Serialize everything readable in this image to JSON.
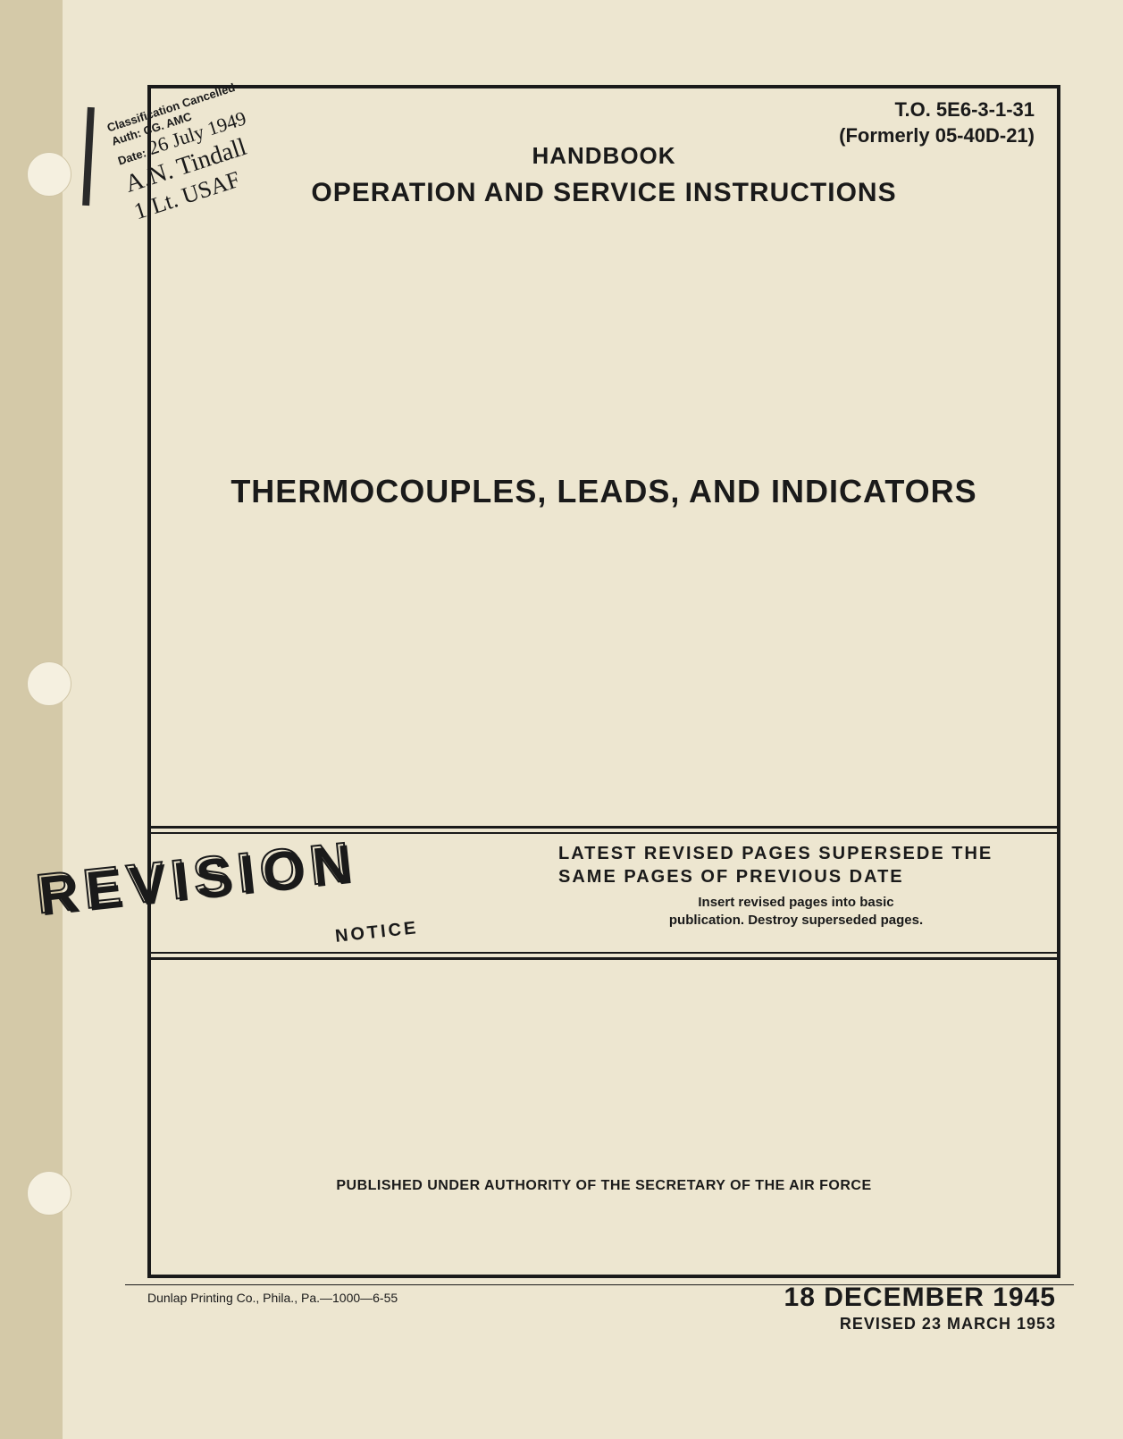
{
  "header": {
    "to_number": "T.O. 5E6-3-1-31",
    "formerly": "(Formerly 05-40D-21)",
    "handbook_label": "HANDBOOK",
    "subtitle": "OPERATION AND SERVICE INSTRUCTIONS"
  },
  "title": "THERMOCOUPLES, LEADS, AND INDICATORS",
  "revision": {
    "word": "REVISION",
    "notice_label": "NOTICE",
    "main_text": "LATEST REVISED PAGES SUPERSEDE THE SAME PAGES OF PREVIOUS DATE",
    "sub_text_1": "Insert revised pages into basic",
    "sub_text_2": "publication. Destroy superseded pages."
  },
  "authority": "PUBLISHED UNDER AUTHORITY OF THE SECRETARY OF THE AIR FORCE",
  "footer": {
    "printer": "Dunlap Printing Co., Phila., Pa.—1000—6-55",
    "pub_date": "18 DECEMBER 1945",
    "rev_date": "REVISED 23 MARCH 1953"
  },
  "stamp": {
    "line1": "Classification Cancelled",
    "line2": "Auth: CG. AMC",
    "line3_label": "Date:",
    "line3_value": "26 July 1949",
    "signature": "A.N. Tindall",
    "rank": "1/Lt. USAF"
  },
  "colors": {
    "page_bg": "#ede6d0",
    "margin_bg": "#d4c9a8",
    "text": "#1a1a1a",
    "border": "#1a1a1a"
  }
}
